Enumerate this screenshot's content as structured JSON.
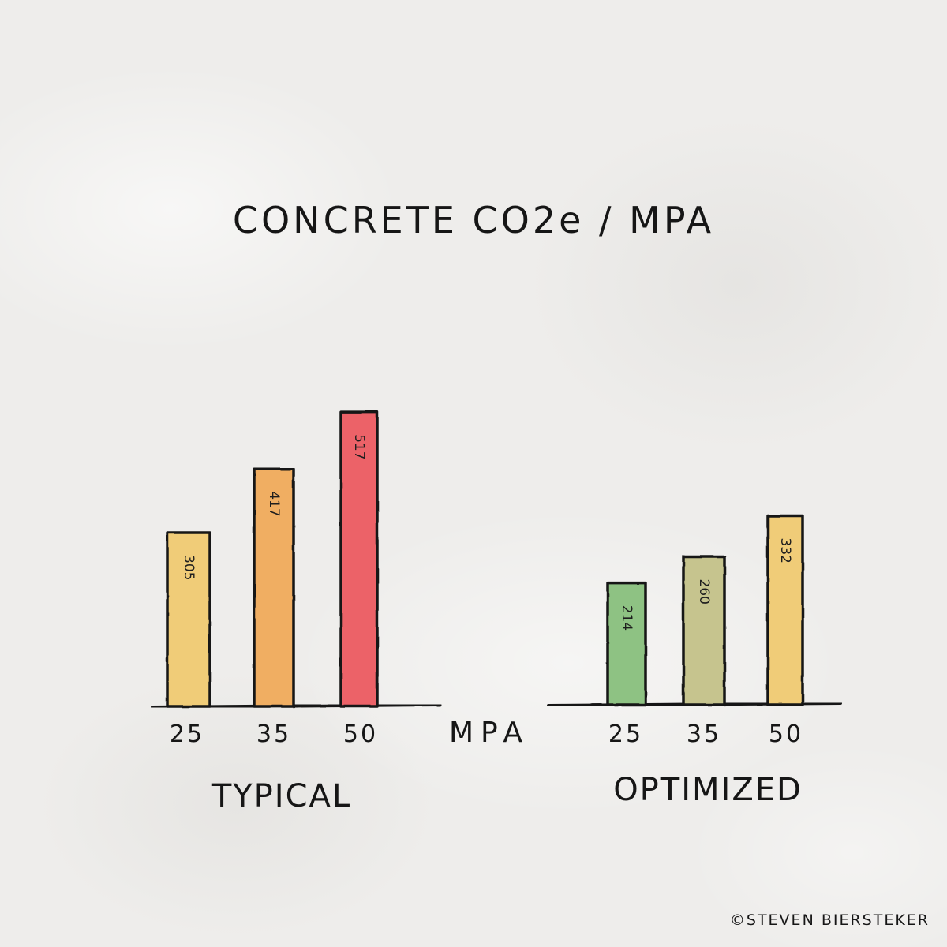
{
  "chart_data": {
    "type": "bar",
    "title": "CONCRETE CO2e / MPA",
    "xlabel": "MPA",
    "ylabel": "",
    "categories": [
      "25",
      "35",
      "50"
    ],
    "series": [
      {
        "name": "TYPICAL",
        "values": [
          305,
          417,
          517
        ],
        "colors": [
          "#f0cc78",
          "#f0ae62",
          "#ec6268"
        ]
      },
      {
        "name": "OPTIMIZED",
        "values": [
          214,
          260,
          332
        ],
        "colors": [
          "#8ec283",
          "#c6c48e",
          "#f0cc78"
        ]
      }
    ]
  },
  "credit": "©STEVEN BIERSTEKER"
}
